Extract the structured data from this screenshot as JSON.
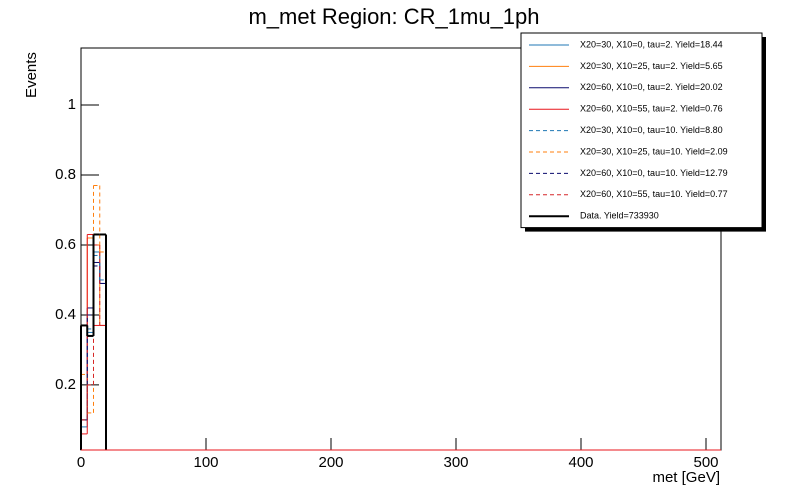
{
  "chart_data": {
    "type": "histogram",
    "title": "m_met Region: CR_1mu_1ph",
    "x_label": "met [GeV]",
    "y_label": "Events",
    "bins": [
      0,
      5,
      10,
      15,
      20
    ],
    "xlim": [
      0,
      512
    ],
    "xticks": [
      0,
      100,
      200,
      300,
      400,
      500
    ],
    "ylim": [
      0.014,
      1.163
    ],
    "yticks": [
      0.2,
      0.4,
      0.6,
      0.8,
      1
    ],
    "legend_position": "upper right",
    "series": [
      {
        "name": "X20=30, X10=0, tau=2. Yield=18.44",
        "color": "#1f77b4",
        "dashed": false,
        "values": [
          0.08,
          0.35,
          0.58,
          0.49
        ]
      },
      {
        "name": "X20=30, X10=25, tau=2. Yield=5.65",
        "color": "#ff7f0e",
        "dashed": false,
        "values": [
          0.1,
          0.62,
          0.6,
          0.37
        ]
      },
      {
        "name": "X20=60, X10=0, tau=2. Yield=20.02",
        "color": "#0b0b6e",
        "dashed": false,
        "values": [
          0.1,
          0.42,
          0.55,
          0.49
        ]
      },
      {
        "name": "X20=60, X10=55, tau=2. Yield=0.76",
        "color": "#e8161b",
        "dashed": false,
        "values": [
          0.06,
          0.63,
          0.37,
          0.37
        ]
      },
      {
        "name": "X20=30, X10=0, tau=10. Yield=8.80",
        "color": "#1f77b4",
        "dashed": true,
        "values": [
          0.1,
          0.36,
          0.57,
          0.5
        ]
      },
      {
        "name": "X20=30, X10=25, tau=10. Yield=2.09",
        "color": "#ff7f0e",
        "dashed": true,
        "values": [
          0.23,
          0.12,
          0.77,
          0.58
        ]
      },
      {
        "name": "X20=60, X10=0, tau=10. Yield=12.79",
        "color": "#0b0b6e",
        "dashed": true,
        "values": [
          0.1,
          0.4,
          0.54,
          0.49
        ]
      },
      {
        "name": "X20=60, X10=55, tau=10. Yield=0.77",
        "color": "#d62728",
        "dashed": true,
        "values": [
          0.1,
          0.2,
          0.6,
          0.37
        ]
      },
      {
        "name": "Data. Yield=733930",
        "color": "#000000",
        "dashed": false,
        "width": 2,
        "values": [
          0.37,
          0.34,
          0.63,
          0.63
        ]
      }
    ]
  }
}
